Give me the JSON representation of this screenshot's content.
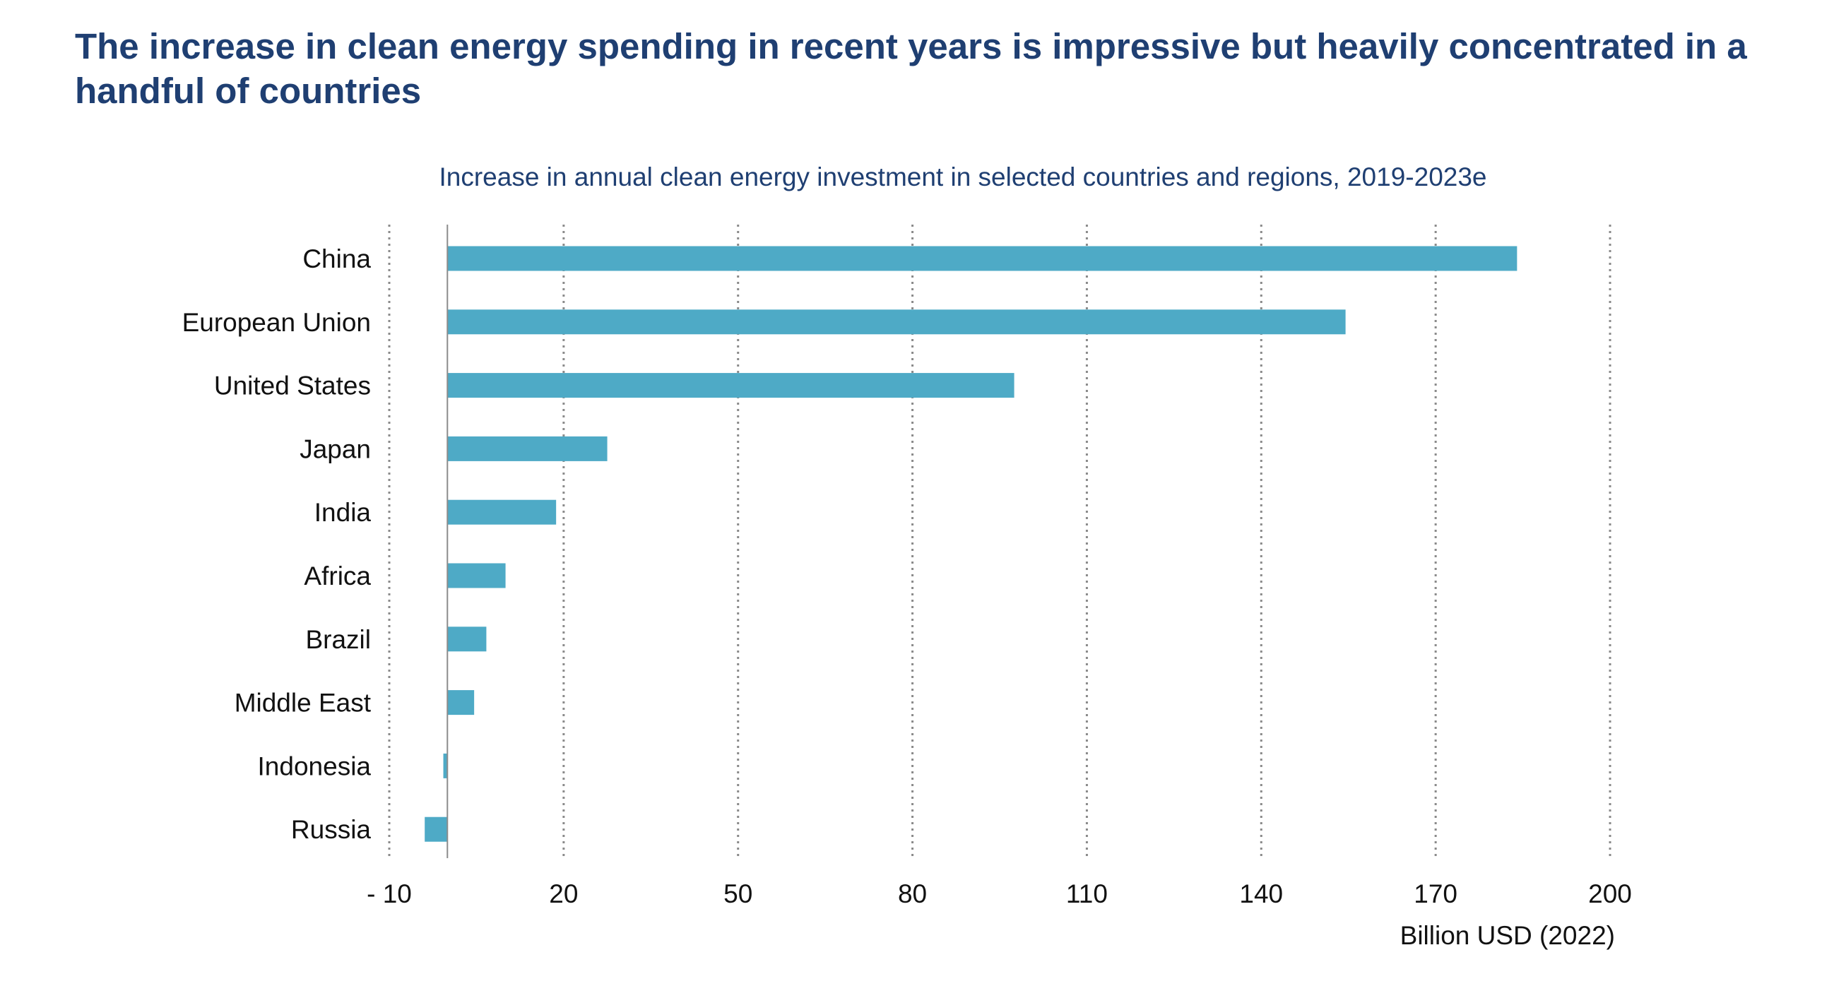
{
  "headline": "The increase in clean energy spending in recent years is impressive but heavily concentrated in a handful of countries",
  "chart_data": {
    "type": "bar",
    "orientation": "horizontal",
    "title": "Increase in annual clean energy investment in selected countries and regions, 2019-2023e",
    "xlabel": "Billion USD (2022)",
    "ylabel": "",
    "categories": [
      "China",
      "European Union",
      "United States",
      "Japan",
      "India",
      "Africa",
      "Brazil",
      "Middle East",
      "Indonesia",
      "Russia"
    ],
    "values": [
      184,
      154.5,
      97.5,
      27.5,
      18.7,
      10,
      6.7,
      4.6,
      -0.7,
      -3.9
    ],
    "xlim": [
      -10,
      200
    ],
    "xticks": [
      -10,
      20,
      50,
      80,
      110,
      140,
      170,
      200
    ],
    "xtick_labels": [
      "- 10",
      "20",
      "50",
      "80",
      "110",
      "140",
      "170",
      "200"
    ],
    "bar_color": "#4eaac6",
    "grid": "vertical dotted",
    "legend": "none"
  }
}
